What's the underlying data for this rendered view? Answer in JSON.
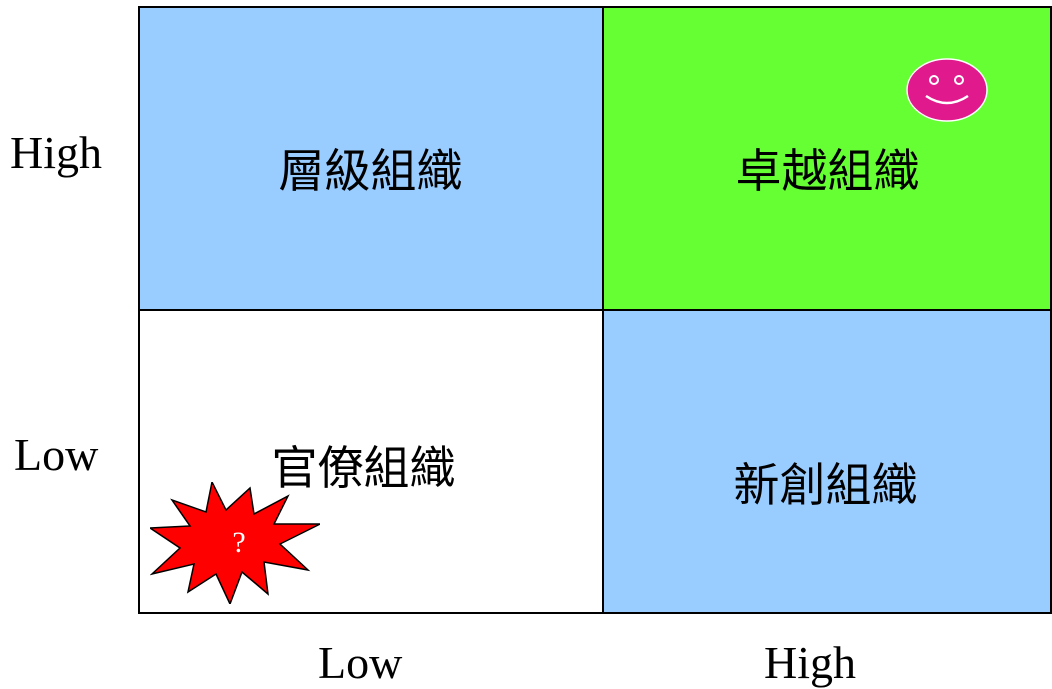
{
  "y_axis": {
    "high_label": "High",
    "low_label": "Low"
  },
  "x_axis": {
    "low_label": "Low",
    "high_label": "High"
  },
  "quadrants": {
    "top_left": {
      "label": "層級組織",
      "color": "#99ccff"
    },
    "top_right": {
      "label": "卓越組織",
      "color": "#66ff33"
    },
    "bottom_left": {
      "label": "官僚組織",
      "color": "#ffffff"
    },
    "bottom_right": {
      "label": "新創組織",
      "color": "#99ccff"
    }
  },
  "markers": {
    "smiley": {
      "icon": "smiley-face-icon",
      "color": "#e0198c"
    },
    "burst": {
      "icon": "explosion-burst-icon",
      "text": "?",
      "color": "#ff0000"
    }
  }
}
